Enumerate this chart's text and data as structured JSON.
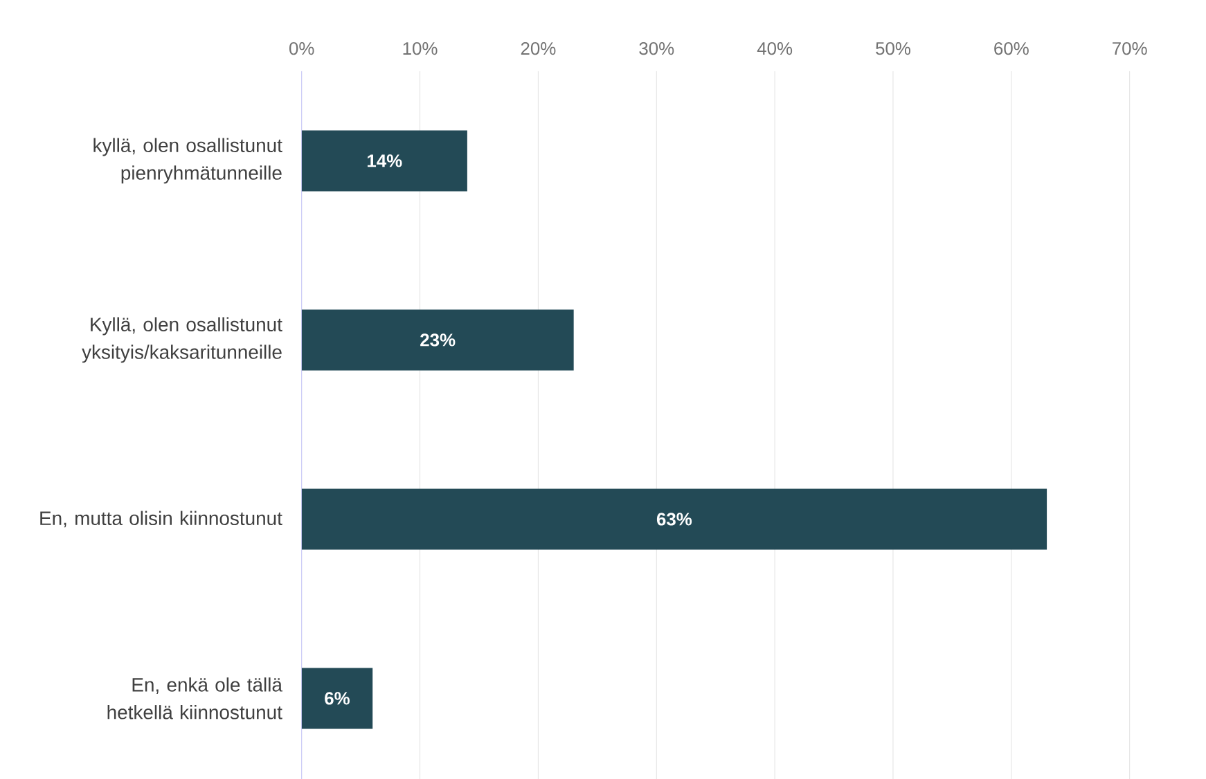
{
  "chart_data": {
    "type": "bar",
    "orientation": "horizontal",
    "categories": [
      "kyllä, olen osallistunut pienryhmätunneille",
      "Kyllä, olen osallistunut yksityis/kaksaritunneille",
      "En, mutta olisin kiinnostunut",
      "En, enkä ole tällä hetkellä kiinnostunut"
    ],
    "values": [
      14,
      23,
      63,
      6
    ],
    "value_labels": [
      "14%",
      "23%",
      "63%",
      "6%"
    ],
    "color": "#234a56",
    "xlim": [
      0,
      70
    ],
    "xticks": [
      {
        "value": 0,
        "label": "0%"
      },
      {
        "value": 10,
        "label": "10%"
      },
      {
        "value": 20,
        "label": "20%"
      },
      {
        "value": 30,
        "label": "30%"
      },
      {
        "value": 40,
        "label": "40%"
      },
      {
        "value": 50,
        "label": "50%"
      },
      {
        "value": 60,
        "label": "60%"
      },
      {
        "value": 70,
        "label": "70%"
      }
    ],
    "grid": "x"
  }
}
